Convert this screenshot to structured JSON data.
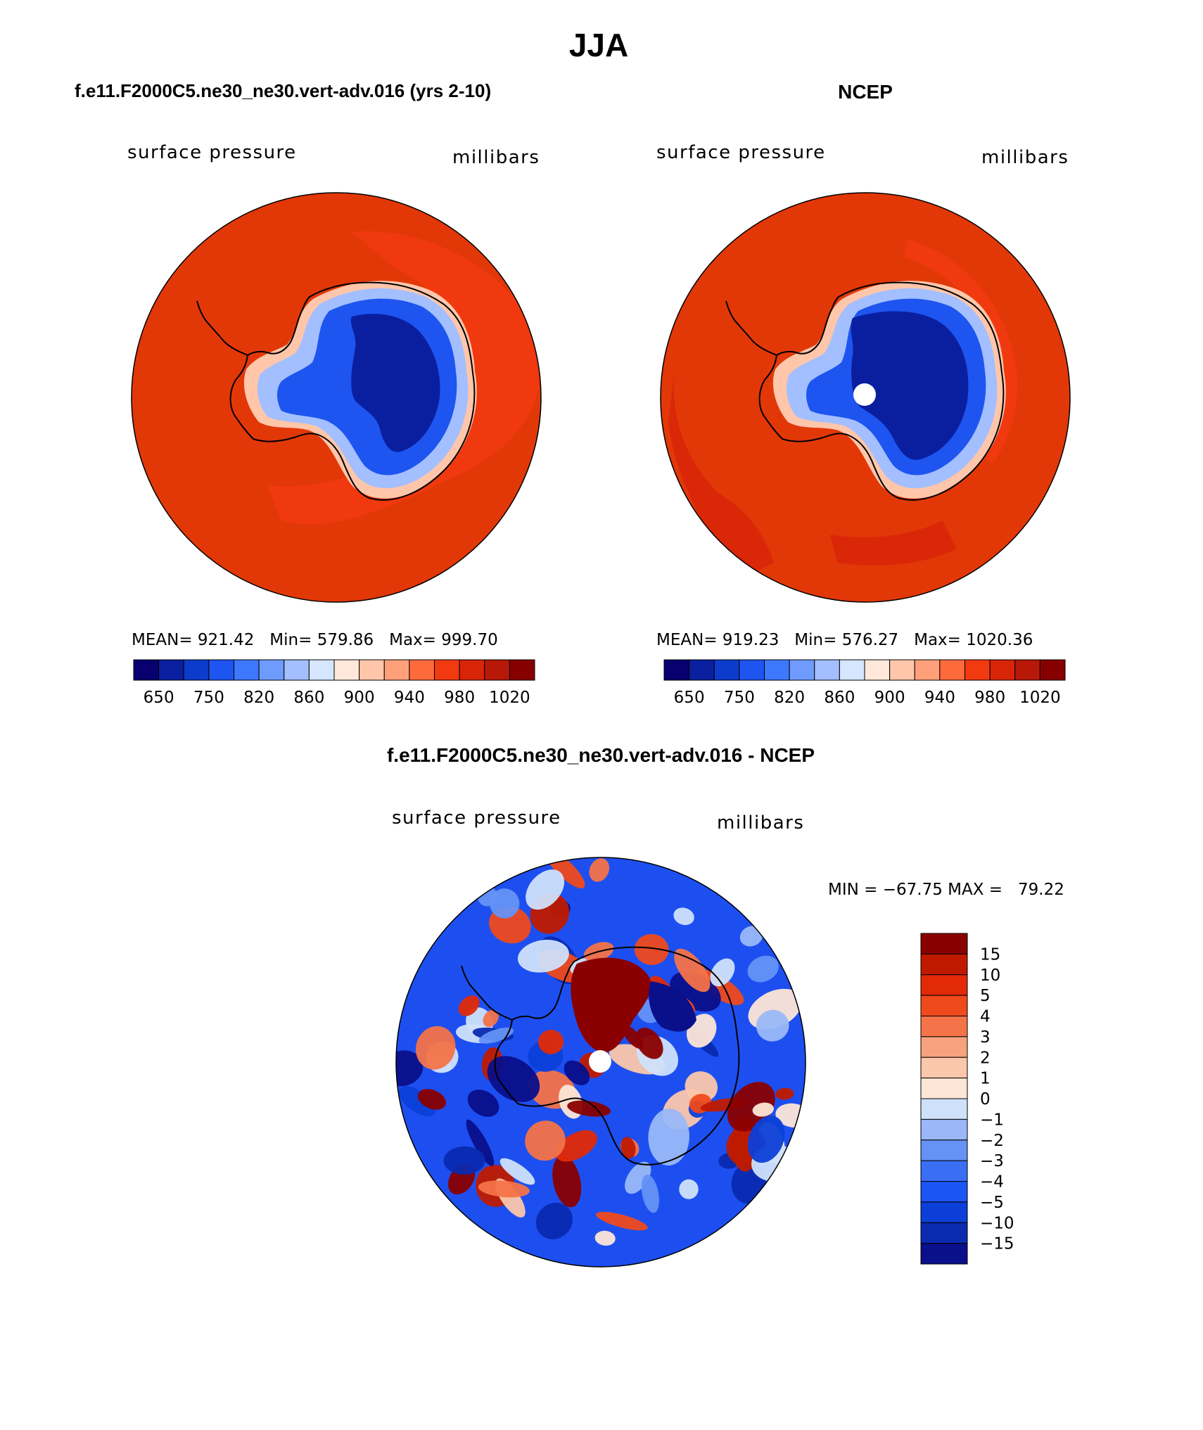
{
  "figure": {
    "title": "JJA"
  },
  "chart_data": [
    {
      "type": "heatmap",
      "panel_title": "f.e11.F2000C5.ne30_ne30.vert-adv.016 (yrs 2-10)",
      "left_label": "surface pressure",
      "right_label": "millibars",
      "projection": "south-polar stereographic",
      "stats": {
        "mean": "921.42",
        "min": "579.86",
        "max": "999.70"
      },
      "stats_text": "MEAN= 921.42   Min= 579.86   Max= 999.70",
      "levels": [
        650,
        700,
        750,
        800,
        820,
        840,
        860,
        880,
        900,
        920,
        940,
        960,
        980,
        1000,
        1020
      ],
      "tick_labels": [
        "650",
        "750",
        "820",
        "860",
        "900",
        "940",
        "980",
        "1020"
      ],
      "colorbar_orientation": "horizontal",
      "has_pole_hole": false
    },
    {
      "type": "heatmap",
      "panel_title": "NCEP",
      "left_label": "surface pressure",
      "right_label": "millibars",
      "projection": "south-polar stereographic",
      "stats": {
        "mean": "919.23",
        "min": "576.27",
        "max": "1020.36"
      },
      "stats_text": "MEAN= 919.23   Min= 576.27   Max= 1020.36",
      "levels": [
        650,
        700,
        750,
        800,
        820,
        840,
        860,
        880,
        900,
        920,
        940,
        960,
        980,
        1000,
        1020
      ],
      "tick_labels": [
        "650",
        "750",
        "820",
        "860",
        "900",
        "940",
        "980",
        "1020"
      ],
      "colorbar_orientation": "horizontal",
      "has_pole_hole": true
    },
    {
      "type": "heatmap",
      "panel_title": "f.e11.F2000C5.ne30_ne30.vert-adv.016 - NCEP",
      "left_label": "surface pressure",
      "right_label": "millibars",
      "projection": "south-polar stereographic",
      "stats": {
        "min": "−67.75",
        "max": "79.22"
      },
      "stats_text": "MIN = −67.75 MAX =   79.22",
      "levels": [
        -15,
        -10,
        -5,
        -4,
        -3,
        -2,
        -1,
        0,
        1,
        2,
        3,
        4,
        5,
        10,
        15
      ],
      "tick_labels": [
        "15",
        "10",
        "5",
        "4",
        "3",
        "2",
        "1",
        "0",
        "−1",
        "−2",
        "−3",
        "−4",
        "−5",
        "−10",
        "−15"
      ],
      "colorbar_orientation": "vertical",
      "has_pole_hole": true
    }
  ],
  "colors": {
    "abs_palette": [
      "#08006e",
      "#0a1fa0",
      "#0d3ccd",
      "#1e55f0",
      "#3d78ff",
      "#6f9bff",
      "#a3bfff",
      "#d6e6ff",
      "#ffe8da",
      "#ffc6aa",
      "#ffa07a",
      "#ff6a3c",
      "#f23a10",
      "#d82508",
      "#b81808",
      "#870000"
    ],
    "diff_palette": [
      "#0a0f8a",
      "#0a2ab0",
      "#0c3fd8",
      "#1a55f5",
      "#3a6ff5",
      "#6492f5",
      "#9ab8f8",
      "#cfe0fb",
      "#fde6d6",
      "#fbc7aa",
      "#f8a17e",
      "#f47348",
      "#ef4a1c",
      "#e22a06",
      "#bf1a00",
      "#8a0000"
    ],
    "ocean_fill": "#e23808",
    "coast_line": "#000000"
  }
}
